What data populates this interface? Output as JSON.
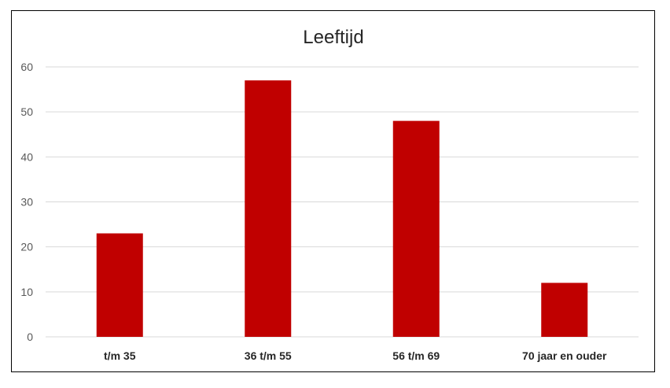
{
  "chart_data": {
    "type": "bar",
    "title": "Leeftijd",
    "xlabel": "",
    "ylabel": "",
    "categories": [
      "t/m 35",
      "36 t/m 55",
      "56 t/m 69",
      "70 jaar en ouder"
    ],
    "series": [
      {
        "values": [
          23,
          57,
          48,
          12
        ],
        "color": "#c00000"
      }
    ],
    "ylim": [
      0,
      60
    ],
    "yticks": [
      0,
      10,
      20,
      30,
      40,
      50,
      60
    ],
    "grid": true,
    "legend": "none"
  }
}
